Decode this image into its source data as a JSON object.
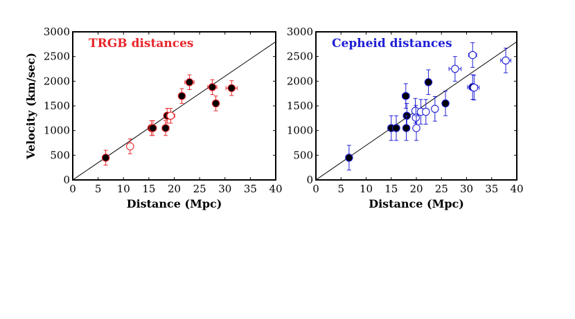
{
  "chart_data": [
    {
      "type": "scatter",
      "title": "TRGB distances",
      "title_color": "#e8262b",
      "marker_color": "#e8262b",
      "xlabel": "Distance (Mpc)",
      "ylabel": "Velocity (km/sec)",
      "xlim": [
        0,
        40
      ],
      "ylim": [
        0,
        3000
      ],
      "xticks": [
        "0",
        "5",
        "10",
        "15",
        "20",
        "25",
        "30",
        "35",
        "40"
      ],
      "yticks": [
        "0",
        "500",
        "1000",
        "1500",
        "2000",
        "2500",
        "3000"
      ],
      "fit_line": {
        "x": [
          0,
          40
        ],
        "y": [
          0,
          2800
        ]
      },
      "series": [
        {
          "filled": true,
          "points": [
            {
              "x": 6.5,
              "y": 450,
              "xerr": 0.3,
              "yerr": 150
            },
            {
              "x": 15.5,
              "y": 1050,
              "xerr": 0.5,
              "yerr": 150
            },
            {
              "x": 15.8,
              "y": 1050,
              "xerr": 0.5,
              "yerr": 150
            },
            {
              "x": 18.3,
              "y": 1050,
              "xerr": 0.5,
              "yerr": 150
            },
            {
              "x": 18.6,
              "y": 1300,
              "xerr": 0.6,
              "yerr": 150
            },
            {
              "x": 21.5,
              "y": 1700,
              "xerr": 0.5,
              "yerr": 150
            },
            {
              "x": 23.0,
              "y": 1980,
              "xerr": 0.9,
              "yerr": 150
            },
            {
              "x": 27.5,
              "y": 1880,
              "xerr": 0.9,
              "yerr": 150
            },
            {
              "x": 28.2,
              "y": 1550,
              "xerr": 0.5,
              "yerr": 150
            },
            {
              "x": 31.3,
              "y": 1860,
              "xerr": 1.1,
              "yerr": 150
            }
          ]
        },
        {
          "filled": false,
          "points": [
            {
              "x": 11.3,
              "y": 680,
              "xerr": 0.5,
              "yerr": 150
            },
            {
              "x": 19.3,
              "y": 1300,
              "xerr": 0.8,
              "yerr": 150
            }
          ]
        }
      ]
    },
    {
      "type": "scatter",
      "title": "Cepheid distances",
      "title_color": "#1f1fd6",
      "marker_color": "#1f1fd6",
      "xlabel": "Distance (Mpc)",
      "ylabel": "",
      "xlim": [
        0,
        40
      ],
      "ylim": [
        0,
        3000
      ],
      "xticks": [
        "0",
        "5",
        "10",
        "15",
        "20",
        "25",
        "30",
        "35",
        "40"
      ],
      "yticks": [
        "0",
        "500",
        "1000",
        "1500",
        "2000",
        "2500",
        "3000"
      ],
      "fit_line": {
        "x": [
          0,
          40
        ],
        "y": [
          0,
          2800
        ]
      },
      "series": [
        {
          "filled": true,
          "points": [
            {
              "x": 6.6,
              "y": 450,
              "xerr": 0.3,
              "yerr": 250
            },
            {
              "x": 15.0,
              "y": 1050,
              "xerr": 0.6,
              "yerr": 250
            },
            {
              "x": 16.0,
              "y": 1050,
              "xerr": 0.6,
              "yerr": 250
            },
            {
              "x": 17.9,
              "y": 1700,
              "xerr": 0.7,
              "yerr": 250
            },
            {
              "x": 18.1,
              "y": 1300,
              "xerr": 0.6,
              "yerr": 250
            },
            {
              "x": 18.0,
              "y": 1050,
              "xerr": 0.6,
              "yerr": 250
            },
            {
              "x": 22.4,
              "y": 1980,
              "xerr": 0.5,
              "yerr": 250
            },
            {
              "x": 25.8,
              "y": 1550,
              "xerr": 0.6,
              "yerr": 250
            },
            {
              "x": 31.2,
              "y": 1880,
              "xerr": 1.0,
              "yerr": 250
            }
          ]
        },
        {
          "filled": false,
          "points": [
            {
              "x": 19.8,
              "y": 1400,
              "xerr": 0.6,
              "yerr": 250
            },
            {
              "x": 19.9,
              "y": 1260,
              "xerr": 0.6,
              "yerr": 250
            },
            {
              "x": 20.0,
              "y": 1050,
              "xerr": 0.6,
              "yerr": 250
            },
            {
              "x": 20.9,
              "y": 1380,
              "xerr": 0.6,
              "yerr": 250
            },
            {
              "x": 21.9,
              "y": 1380,
              "xerr": 0.6,
              "yerr": 250
            },
            {
              "x": 23.7,
              "y": 1440,
              "xerr": 0.6,
              "yerr": 250
            },
            {
              "x": 27.7,
              "y": 2250,
              "xerr": 1.2,
              "yerr": 250
            },
            {
              "x": 31.2,
              "y": 2530,
              "xerr": 0.8,
              "yerr": 250
            },
            {
              "x": 31.5,
              "y": 1870,
              "xerr": 1.0,
              "yerr": 250
            },
            {
              "x": 37.8,
              "y": 2420,
              "xerr": 1.0,
              "yerr": 250
            }
          ]
        }
      ]
    }
  ]
}
